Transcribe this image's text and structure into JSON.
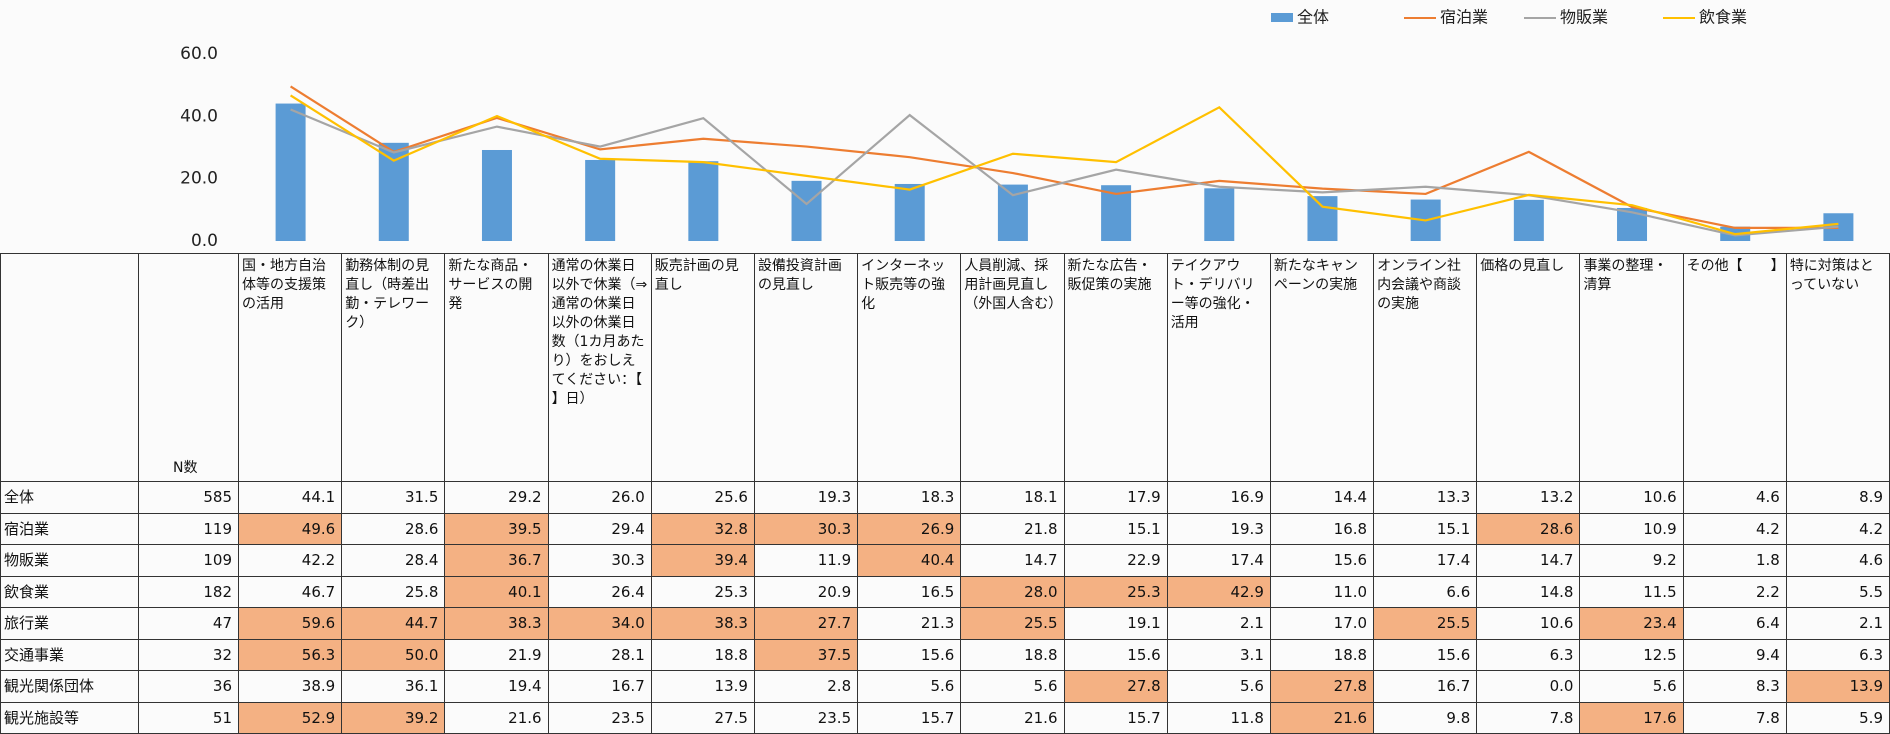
{
  "chart_data": {
    "type": "bar_line",
    "series": [
      {
        "name": "全体",
        "color": "#5b9bd5",
        "kind": "bar",
        "values": [
          44.1,
          31.5,
          29.2,
          26.0,
          25.6,
          19.3,
          18.3,
          18.1,
          17.9,
          16.9,
          14.4,
          13.3,
          13.2,
          10.6,
          4.6,
          8.9
        ]
      },
      {
        "name": "宿泊業",
        "color": "#ed7d31",
        "kind": "line",
        "values": [
          49.6,
          28.6,
          39.5,
          29.4,
          32.8,
          30.3,
          26.9,
          21.8,
          15.1,
          19.3,
          16.8,
          15.1,
          28.6,
          10.9,
          4.2,
          4.2
        ]
      },
      {
        "name": "物販業",
        "color": "#a5a5a5",
        "kind": "line",
        "values": [
          42.2,
          28.4,
          36.7,
          30.3,
          39.4,
          11.9,
          40.4,
          14.7,
          22.9,
          17.4,
          15.6,
          17.4,
          14.7,
          9.2,
          1.8,
          4.6
        ]
      },
      {
        "name": "飲食業",
        "color": "#ffc000",
        "kind": "line",
        "values": [
          46.7,
          25.8,
          40.1,
          26.4,
          25.3,
          20.9,
          16.5,
          28.0,
          25.3,
          42.9,
          11.0,
          6.6,
          14.8,
          11.5,
          2.2,
          5.5
        ]
      }
    ],
    "ylim": [
      0,
      60
    ],
    "yticks": [
      {
        "value": 0,
        "label": "0.0"
      },
      {
        "value": 20,
        "label": "20.0"
      },
      {
        "value": 40,
        "label": "40.0"
      },
      {
        "value": 60,
        "label": "60.0"
      }
    ],
    "grid": false,
    "legend": "top-right"
  },
  "table": {
    "n_header": "N数",
    "columns": [
      "国・地方自治体等の支援策の活用",
      "勤務体制の見直し（時差出勤・テレワーク）",
      "新たな商品・サービスの開発",
      "通常の休業日以外で休業（⇒通常の休業日以外の休業日数（1カ月あたり）をおしえてください：【　　】日）",
      "販売計画の見直し",
      "設備投資計画の見直し",
      "インターネット販売等の強化",
      "人員削減、採用計画見直し（外国人含む）",
      "新たな広告・販促策の実施",
      "テイクアウト・デリバリー等の強化・活用",
      "新たなキャンペーンの実施",
      "オンライン社内会議や商談の実施",
      "価格の見直し",
      "事業の整理・清算",
      "その他【　　】",
      "特に対策はとっていない"
    ],
    "rows": [
      {
        "label": "全体",
        "n": "585",
        "values": [
          "44.1",
          "31.5",
          "29.2",
          "26.0",
          "25.6",
          "19.3",
          "18.3",
          "18.1",
          "17.9",
          "16.9",
          "14.4",
          "13.3",
          "13.2",
          "10.6",
          "4.6",
          "8.9"
        ],
        "highlight": []
      },
      {
        "label": "宿泊業",
        "n": "119",
        "values": [
          "49.6",
          "28.6",
          "39.5",
          "29.4",
          "32.8",
          "30.3",
          "26.9",
          "21.8",
          "15.1",
          "19.3",
          "16.8",
          "15.1",
          "28.6",
          "10.9",
          "4.2",
          "4.2"
        ],
        "highlight": [
          0,
          2,
          4,
          5,
          6,
          12
        ]
      },
      {
        "label": "物販業",
        "n": "109",
        "values": [
          "42.2",
          "28.4",
          "36.7",
          "30.3",
          "39.4",
          "11.9",
          "40.4",
          "14.7",
          "22.9",
          "17.4",
          "15.6",
          "17.4",
          "14.7",
          "9.2",
          "1.8",
          "4.6"
        ],
        "highlight": [
          2,
          4,
          6
        ]
      },
      {
        "label": "飲食業",
        "n": "182",
        "values": [
          "46.7",
          "25.8",
          "40.1",
          "26.4",
          "25.3",
          "20.9",
          "16.5",
          "28.0",
          "25.3",
          "42.9",
          "11.0",
          "6.6",
          "14.8",
          "11.5",
          "2.2",
          "5.5"
        ],
        "highlight": [
          2,
          7,
          8,
          9
        ]
      },
      {
        "label": "旅行業",
        "n": "47",
        "values": [
          "59.6",
          "44.7",
          "38.3",
          "34.0",
          "38.3",
          "27.7",
          "21.3",
          "25.5",
          "19.1",
          "2.1",
          "17.0",
          "25.5",
          "10.6",
          "23.4",
          "6.4",
          "2.1"
        ],
        "highlight": [
          0,
          1,
          2,
          3,
          4,
          5,
          7,
          11,
          13
        ]
      },
      {
        "label": "交通事業",
        "n": "32",
        "values": [
          "56.3",
          "50.0",
          "21.9",
          "28.1",
          "18.8",
          "37.5",
          "15.6",
          "18.8",
          "15.6",
          "3.1",
          "18.8",
          "15.6",
          "6.3",
          "12.5",
          "9.4",
          "6.3"
        ],
        "highlight": [
          0,
          1,
          5
        ]
      },
      {
        "label": "観光関係団体",
        "n": "36",
        "values": [
          "38.9",
          "36.1",
          "19.4",
          "16.7",
          "13.9",
          "2.8",
          "5.6",
          "5.6",
          "27.8",
          "5.6",
          "27.8",
          "16.7",
          "0.0",
          "5.6",
          "8.3",
          "13.9"
        ],
        "highlight": [
          8,
          10,
          15
        ]
      },
      {
        "label": "観光施設等",
        "n": "51",
        "values": [
          "52.9",
          "39.2",
          "21.6",
          "23.5",
          "27.5",
          "23.5",
          "15.7",
          "21.6",
          "15.7",
          "11.8",
          "21.6",
          "9.8",
          "7.8",
          "17.6",
          "7.8",
          "5.9"
        ],
        "highlight": [
          0,
          1,
          10,
          13
        ]
      }
    ],
    "highlight_color": "#f4b183"
  }
}
